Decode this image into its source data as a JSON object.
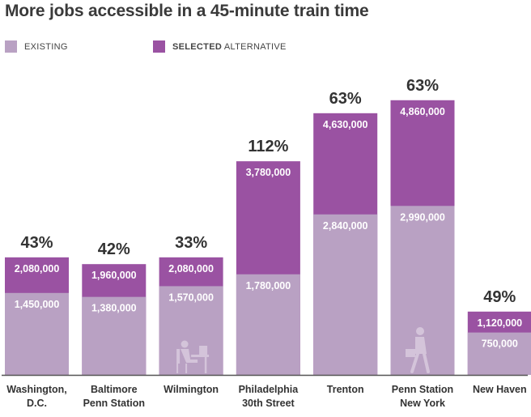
{
  "title": "More jobs accessible in a 45-minute train time",
  "legend": {
    "existing_label": "EXISTING",
    "selected_bold": "SELECTED",
    "selected_rest": " ALTERNATIVE"
  },
  "colors": {
    "existing": "#b9a1c3",
    "selected": "#9a52a2",
    "baseline": "#555555",
    "icon": "#d4c4da"
  },
  "chart_data": {
    "type": "bar",
    "title": "More jobs accessible in a 45-minute train time",
    "categories": [
      [
        "Washington,",
        "D.C."
      ],
      [
        "Baltimore",
        "Penn Station"
      ],
      [
        "Wilmington"
      ],
      [
        "Philadelphia",
        "30th Street"
      ],
      [
        "Trenton"
      ],
      [
        "Penn Station",
        "New York"
      ],
      [
        "New Haven"
      ]
    ],
    "series": [
      {
        "name": "EXISTING",
        "values": [
          1450000,
          1380000,
          1570000,
          1780000,
          2840000,
          2990000,
          750000
        ],
        "labels": [
          "1,450,000",
          "1,380,000",
          "1,570,000",
          "1,780,000",
          "2,840,000",
          "2,990,000",
          "750,000"
        ]
      },
      {
        "name": "SELECTED ALTERNATIVE",
        "values": [
          2080000,
          1960000,
          2080000,
          3780000,
          4630000,
          4860000,
          1120000
        ],
        "labels": [
          "2,080,000",
          "1,960,000",
          "2,080,000",
          "3,780,000",
          "4,630,000",
          "4,860,000",
          "1,120,000"
        ]
      }
    ],
    "percent_increase": [
      "43%",
      "42%",
      "33%",
      "112%",
      "63%",
      "63%",
      "49%"
    ],
    "icons": [
      "",
      "",
      "office-worker-icon",
      "",
      "",
      "commuter-icon",
      ""
    ],
    "ylim": [
      0,
      5000000
    ],
    "legend_position": "top-left",
    "grid": false
  }
}
